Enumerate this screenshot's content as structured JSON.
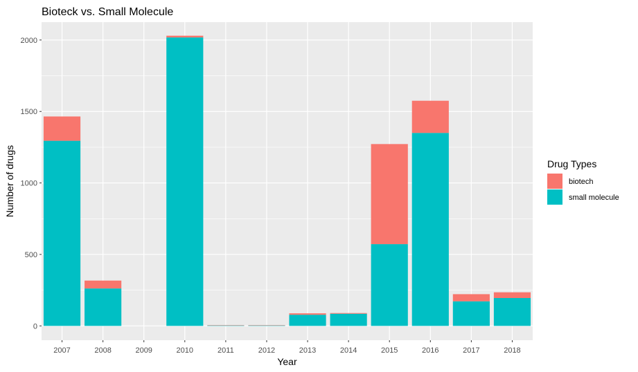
{
  "chart_data": {
    "type": "bar",
    "stacked": true,
    "title": "Bioteck vs. Small Molecule",
    "xlabel": "Year",
    "ylabel": "Number of drugs",
    "categories": [
      "2007",
      "2008",
      "2009",
      "2010",
      "2011",
      "2012",
      "2013",
      "2014",
      "2015",
      "2016",
      "2017",
      "2018"
    ],
    "yticks": [
      0,
      500,
      1000,
      1500,
      2000
    ],
    "ylim": [
      -100,
      2125
    ],
    "series": [
      {
        "name": "small molecule",
        "color": "#00BFC4",
        "values": [
          1295,
          262,
          0,
          2018,
          4,
          4,
          78,
          85,
          572,
          1350,
          172,
          195
        ]
      },
      {
        "name": "biotech",
        "color": "#F8766D",
        "values": [
          170,
          55,
          0,
          12,
          1,
          1,
          10,
          5,
          700,
          225,
          50,
          40
        ]
      }
    ],
    "legend": {
      "title": "Drug Types",
      "position": "right",
      "entries": [
        {
          "label": "biotech",
          "color": "#F8766D"
        },
        {
          "label": "small molecule",
          "color": "#00BFC4"
        }
      ]
    },
    "grid": true,
    "panel_color": "#EBEBEB",
    "grid_color": "#FFFFFF"
  }
}
